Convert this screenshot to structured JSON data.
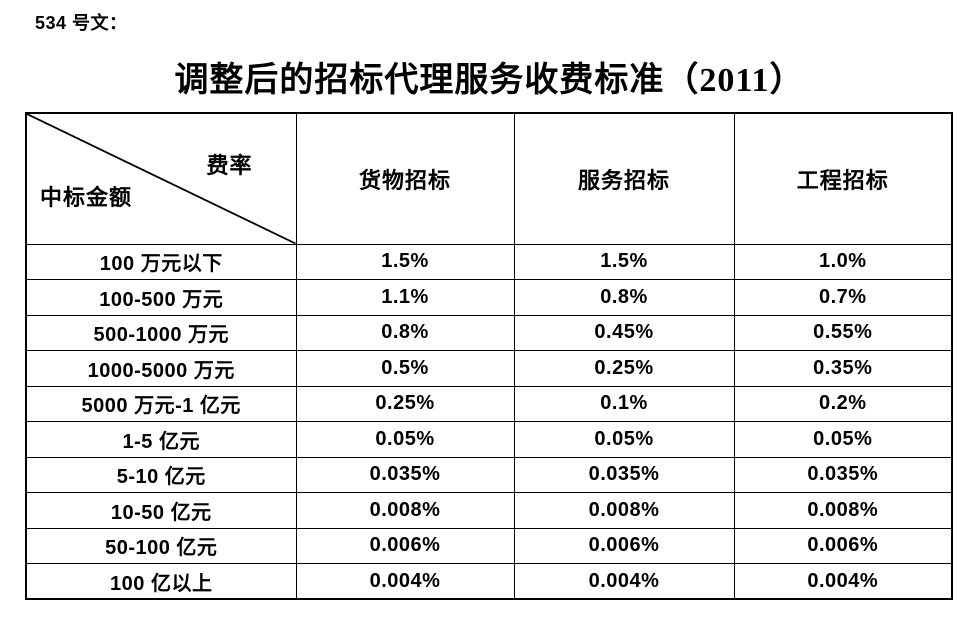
{
  "doc_label": "534 号文：",
  "title": "调整后的招标代理服务收费标准（2011）",
  "table": {
    "corner": {
      "top_right": "费率",
      "bottom_left": "中标金额"
    },
    "columns": [
      "货物招标",
      "服务招标",
      "工程招标"
    ],
    "rows": [
      {
        "label": "100 万元以下",
        "values": [
          "1.5%",
          "1.5%",
          "1.0%"
        ]
      },
      {
        "label": "100-500 万元",
        "values": [
          "1.1%",
          "0.8%",
          "0.7%"
        ]
      },
      {
        "label": "500-1000 万元",
        "values": [
          "0.8%",
          "0.45%",
          "0.55%"
        ]
      },
      {
        "label": "1000-5000 万元",
        "values": [
          "0.5%",
          "0.25%",
          "0.35%"
        ]
      },
      {
        "label": "5000 万元-1 亿元",
        "values": [
          "0.25%",
          "0.1%",
          "0.2%"
        ]
      },
      {
        "label": "1-5 亿元",
        "values": [
          "0.05%",
          "0.05%",
          "0.05%"
        ]
      },
      {
        "label": "5-10 亿元",
        "values": [
          "0.035%",
          "0.035%",
          "0.035%"
        ]
      },
      {
        "label": "10-50 亿元",
        "values": [
          "0.008%",
          "0.008%",
          "0.008%"
        ]
      },
      {
        "label": "50-100 亿元",
        "values": [
          "0.006%",
          "0.006%",
          "0.006%"
        ]
      },
      {
        "label": "100 亿以上",
        "values": [
          "0.004%",
          "0.004%",
          "0.004%"
        ]
      }
    ],
    "colors": {
      "border": "#000000",
      "text": "#000000",
      "background": "#ffffff"
    }
  }
}
